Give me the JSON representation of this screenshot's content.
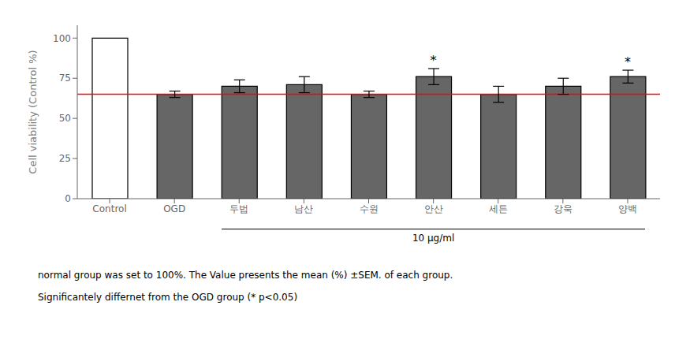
{
  "chart_data": {
    "type": "bar",
    "categories": [
      "Control",
      "OGD",
      "두법",
      "남산",
      "수원",
      "안산",
      "세든",
      "강욱",
      "양백"
    ],
    "values": [
      100,
      65,
      70,
      71,
      65,
      76,
      65,
      70,
      76
    ],
    "errors": [
      0,
      2,
      4,
      5,
      2,
      5,
      5,
      5,
      4
    ],
    "colors": [
      "#ffffff",
      "#666666",
      "#666666",
      "#666666",
      "#666666",
      "#666666",
      "#666666",
      "#666666",
      "#666666"
    ],
    "edge_color": "#000000",
    "ylabel": "Cell viability (Control %)",
    "ylim": [
      0,
      108
    ],
    "yticks": [
      0,
      25,
      50,
      75,
      100
    ],
    "grid": false,
    "reference_line": {
      "y": 65,
      "color": "red"
    },
    "annotations": [
      {
        "text": "*",
        "category": "안산"
      },
      {
        "text": "*",
        "category": "양백"
      }
    ],
    "group_label": {
      "text": "10 μg/ml",
      "from": "두법",
      "to": "양백"
    },
    "notes": [
      "normal group was set to 100%. The Value presents the mean (%) ±SEM. of each group.",
      "Significantely differnet from the OGD group (* p<0.05)"
    ]
  }
}
